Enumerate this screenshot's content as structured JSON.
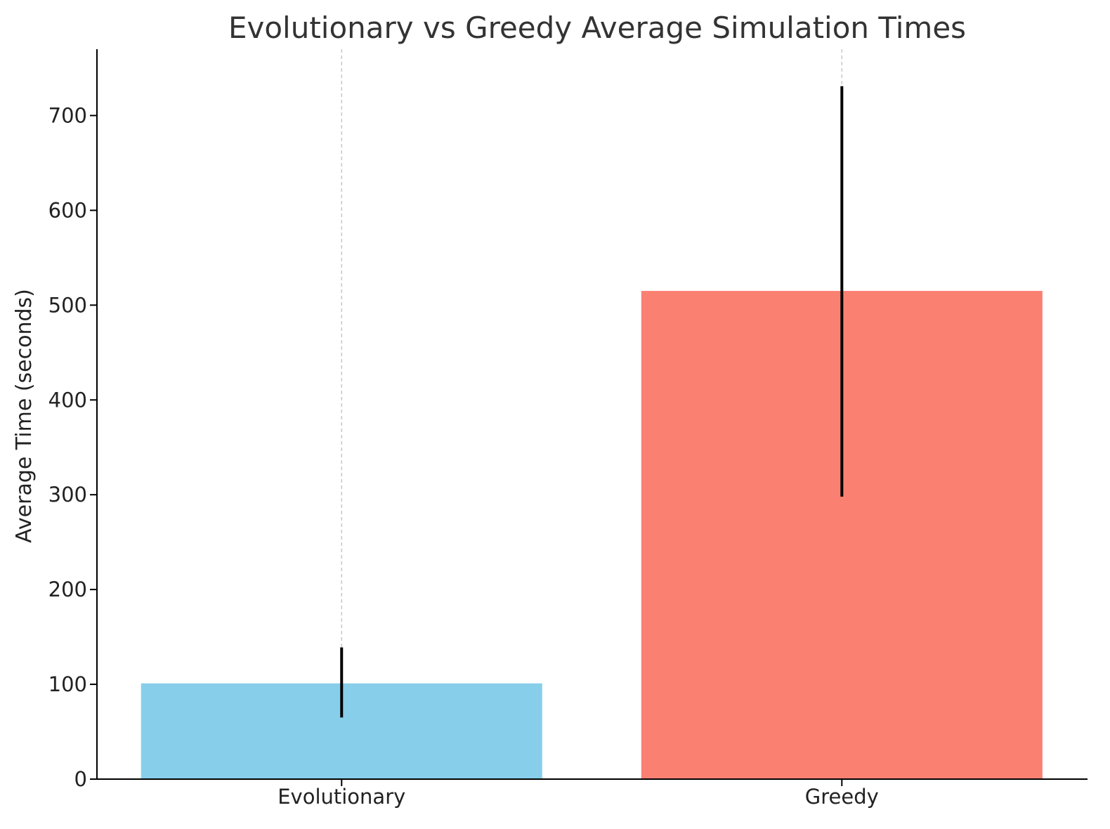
{
  "chart_data": {
    "type": "bar",
    "title": "Evolutionary vs Greedy Average Simulation Times",
    "xlabel": "",
    "ylabel": "Average Time (seconds)",
    "categories": [
      "Evolutionary",
      "Greedy"
    ],
    "values": [
      101,
      515
    ],
    "error_low": [
      65,
      298
    ],
    "error_high": [
      139,
      731
    ],
    "colors": [
      "#87CEEB",
      "#FA8072"
    ],
    "error_color": "#000000",
    "ylim": [
      0,
      770
    ],
    "yticks": [
      0,
      100,
      200,
      300,
      400,
      500,
      600,
      700
    ],
    "grid": "vertical dashed at categories",
    "legend": "none"
  }
}
